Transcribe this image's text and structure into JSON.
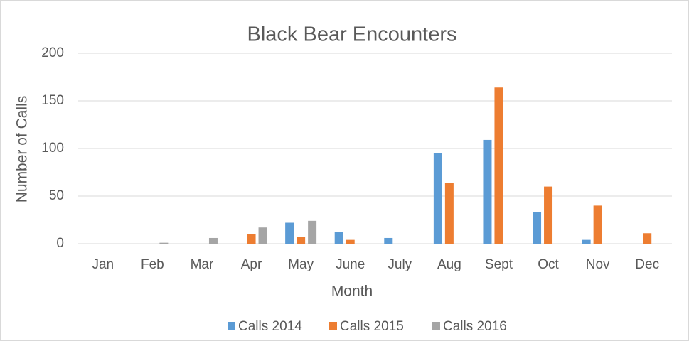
{
  "chart_data": {
    "type": "bar",
    "title": "Black Bear Encounters",
    "x_label": "Month",
    "y_label": "Number of Calls",
    "categories": [
      "Jan",
      "Feb",
      "Mar",
      "Apr",
      "May",
      "June",
      "July",
      "Aug",
      "Sept",
      "Oct",
      "Nov",
      "Dec"
    ],
    "series": [
      {
        "name": "Calls 2014",
        "color": "#5b9bd5",
        "values": [
          0,
          0,
          0,
          0,
          22,
          12,
          6,
          95,
          109,
          33,
          4,
          0
        ]
      },
      {
        "name": "Calls 2015",
        "color": "#ed7d31",
        "values": [
          0,
          0,
          0,
          10,
          7,
          4,
          0,
          64,
          164,
          60,
          40,
          11
        ]
      },
      {
        "name": "Calls 2016",
        "color": "#a5a5a5",
        "values": [
          0,
          1,
          6,
          17,
          24,
          0,
          0,
          0,
          0,
          0,
          0,
          0
        ]
      }
    ],
    "ylim": [
      0,
      200
    ],
    "yticks": [
      0,
      50,
      100,
      150,
      200
    ],
    "grid": true,
    "legend": "bottom"
  }
}
